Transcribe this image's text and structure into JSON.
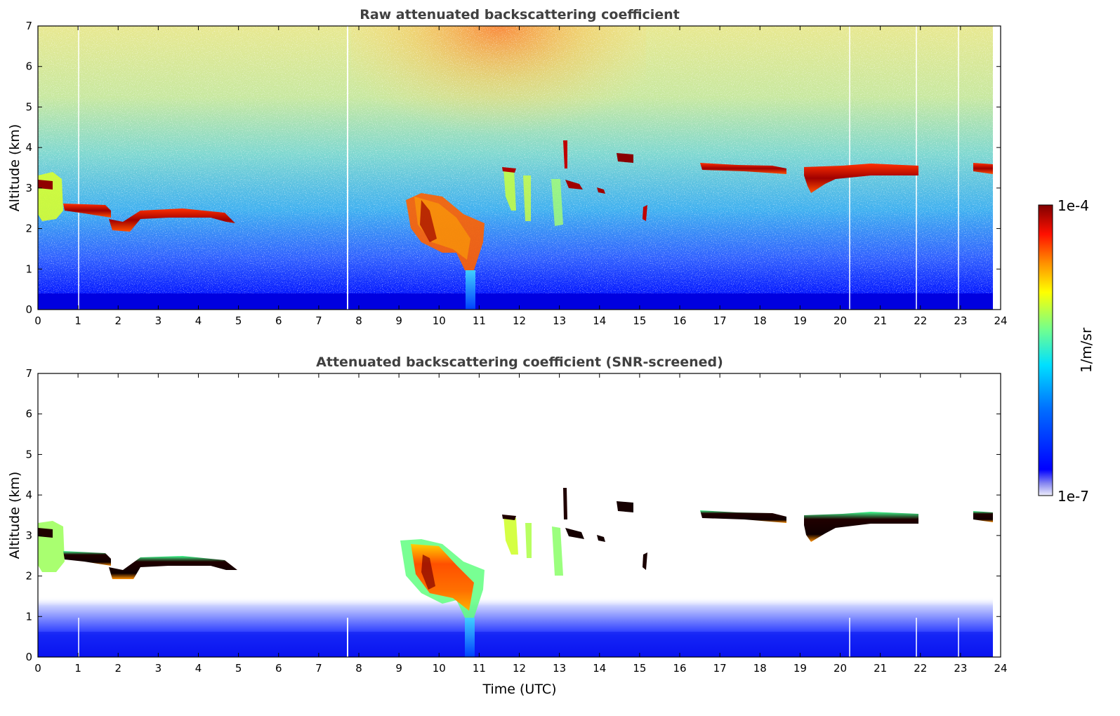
{
  "chart_data": [
    {
      "type": "heatmap",
      "title": "Raw attenuated backscattering coefficient",
      "xlabel": "",
      "ylabel": "Altitude (km)",
      "xlim": [
        0,
        24
      ],
      "ylim": [
        0,
        7
      ],
      "xticks": [
        "0",
        "1",
        "2",
        "3",
        "4",
        "5",
        "6",
        "7",
        "8",
        "9",
        "10",
        "11",
        "12",
        "13",
        "14",
        "15",
        "16",
        "17",
        "18",
        "19",
        "20",
        "21",
        "22",
        "23",
        "24"
      ],
      "yticks": [
        "0",
        "1",
        "2",
        "3",
        "4",
        "5",
        "6",
        "7"
      ],
      "features": [
        {
          "name": "low aerosol cloud",
          "time": [
            0.0,
            0.6
          ],
          "altitude": [
            2.2,
            3.3
          ],
          "level": "medium"
        },
        {
          "name": "cloud layer",
          "time": [
            0.6,
            4.9
          ],
          "altitude": [
            1.9,
            2.6
          ],
          "level": "high"
        },
        {
          "name": "cloud",
          "time": [
            9.2,
            11.0
          ],
          "altitude": [
            1.0,
            2.9
          ],
          "level": "high"
        },
        {
          "name": "precipitation column",
          "time": [
            10.65,
            10.85
          ],
          "altitude": [
            0.0,
            1.0
          ],
          "level": "medium"
        },
        {
          "name": "cloud fragments",
          "time": [
            11.5,
            13.0
          ],
          "altitude": [
            2.0,
            3.6
          ],
          "level": "medium"
        },
        {
          "name": "small clouds",
          "time": [
            13.0,
            14.9
          ],
          "altitude": [
            2.8,
            4.2
          ],
          "level": "high"
        },
        {
          "name": "cloud layer",
          "time": [
            16.5,
            18.6
          ],
          "altitude": [
            3.3,
            3.6
          ],
          "level": "high"
        },
        {
          "name": "cloud layer",
          "time": [
            19.0,
            21.9
          ],
          "altitude": [
            2.8,
            3.6
          ],
          "level": "high"
        },
        {
          "name": "cloud",
          "time": [
            23.3,
            23.8
          ],
          "altitude": [
            3.3,
            3.7
          ],
          "level": "high"
        }
      ]
    },
    {
      "type": "heatmap",
      "title": "Attenuated backscattering coefficient (SNR-screened)",
      "xlabel": "Time (UTC)",
      "ylabel": "Altitude (km)",
      "xlim": [
        0,
        24
      ],
      "ylim": [
        0,
        7
      ],
      "xticks": [
        "0",
        "1",
        "2",
        "3",
        "4",
        "5",
        "6",
        "7",
        "8",
        "9",
        "10",
        "11",
        "12",
        "13",
        "14",
        "15",
        "16",
        "17",
        "18",
        "19",
        "20",
        "21",
        "22",
        "23",
        "24"
      ],
      "yticks": [
        "0",
        "1",
        "2",
        "3",
        "4",
        "5",
        "6",
        "7"
      ],
      "features": [
        {
          "name": "boundary layer",
          "time": [
            0,
            23.8
          ],
          "altitude": [
            0.0,
            1.2
          ],
          "level": "low"
        },
        {
          "name": "cloud layer",
          "time": [
            0.0,
            4.9
          ],
          "altitude": [
            1.9,
            3.3
          ],
          "level": "high"
        },
        {
          "name": "cloud",
          "time": [
            9.0,
            11.1
          ],
          "altitude": [
            1.0,
            2.9
          ],
          "level": "high"
        },
        {
          "name": "cloud layers",
          "time": [
            16.5,
            23.8
          ],
          "altitude": [
            2.8,
            3.7
          ],
          "level": "high"
        }
      ]
    }
  ],
  "colorbar": {
    "label": "1/m/sr",
    "max_label": "1e-4",
    "min_label": "1e-7",
    "range": [
      1e-07,
      0.0001
    ],
    "scale": "log",
    "colormap": [
      "#e8e8f8",
      "#8080f0",
      "#0000ff",
      "#0080ff",
      "#00ffff",
      "#80ff80",
      "#ffff00",
      "#ff8000",
      "#ff0000",
      "#800000"
    ]
  }
}
